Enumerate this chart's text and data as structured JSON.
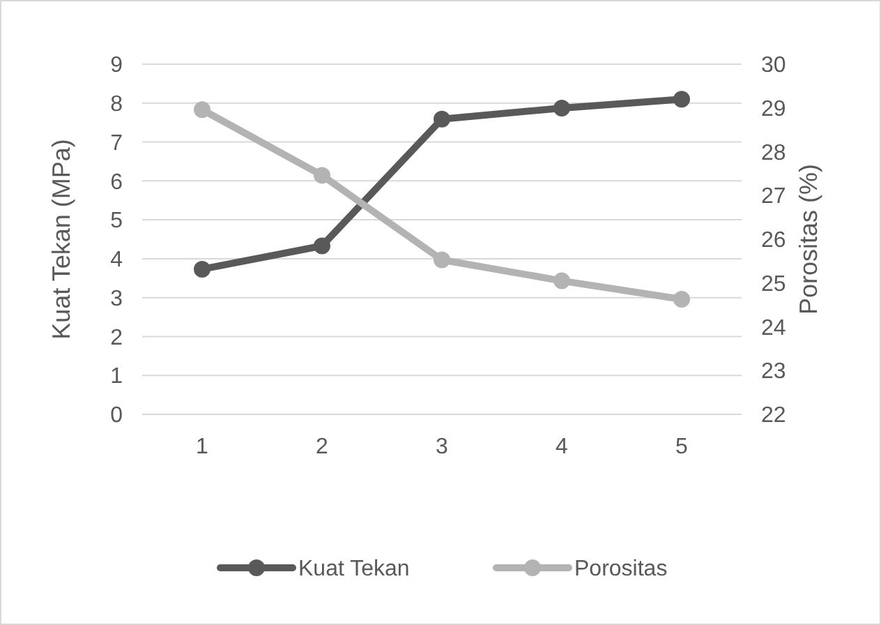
{
  "chart_data": {
    "type": "line",
    "categories": [
      "1",
      "2",
      "3",
      "4",
      "5"
    ],
    "series": [
      {
        "name": "Kuat Tekan",
        "color": "#595959",
        "values": [
          3.73,
          4.33,
          7.59,
          7.87,
          8.1
        ]
      },
      {
        "name": "Porositas",
        "color": "#b3b3b3",
        "axis": "y2",
        "values": [
          28.96,
          27.46,
          25.53,
          25.05,
          24.63
        ]
      }
    ],
    "ylabel": "Kuat Tekan (MPa)",
    "y2label": "Porositas (%)",
    "ylim": [
      0,
      9
    ],
    "yticks": [
      0,
      1,
      2,
      3,
      4,
      5,
      6,
      7,
      8,
      9
    ],
    "y2lim": [
      22,
      30
    ],
    "y2ticks": [
      22,
      23,
      24,
      25,
      26,
      27,
      28,
      29,
      30
    ],
    "grid": "y",
    "legend": "bottom",
    "marker": "circle",
    "line_style": "solid"
  }
}
